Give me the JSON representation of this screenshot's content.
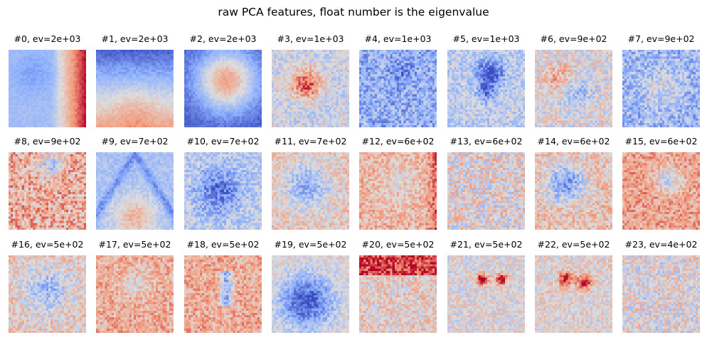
{
  "figure": {
    "title": "raw PCA features, float number is the eigenvalue"
  },
  "colors": {
    "colormap": "coolwarm",
    "low": "#3b4cc0",
    "mid": "#dddddd",
    "high": "#b40426"
  },
  "chart_data": {
    "type": "heatmap",
    "title": "raw PCA features, float number is the eigenvalue",
    "grid": false,
    "axes_visible": false,
    "colormap": "coolwarm",
    "panels": [
      {
        "label": "#0, ev=2e+03",
        "eigenvalue": 2000,
        "pattern": "left cool, right warm gradient"
      },
      {
        "label": "#1, ev=2e+03",
        "eigenvalue": 2000,
        "pattern": "top cool, bottom warm gradient"
      },
      {
        "label": "#2, ev=2e+03",
        "eigenvalue": 2000,
        "pattern": "warm center blob, cool edges"
      },
      {
        "label": "#3, ev=1e+03",
        "eigenvalue": 1000,
        "pattern": "strong warm object, cool ring"
      },
      {
        "label": "#4, ev=1e+03",
        "eigenvalue": 1000,
        "pattern": "cool noisy, faint object"
      },
      {
        "label": "#5, ev=1e+03",
        "eigenvalue": 1000,
        "pattern": "cool cross shape"
      },
      {
        "label": "#6, ev=9e+02",
        "eigenvalue": 900,
        "pattern": "mixed, warm arc"
      },
      {
        "label": "#7, ev=9e+02",
        "eigenvalue": 900,
        "pattern": "cool noisy"
      },
      {
        "label": "#8, ev=9e+02",
        "eigenvalue": 900,
        "pattern": "warm noisy, cool top"
      },
      {
        "label": "#9, ev=7e+02",
        "eigenvalue": 700,
        "pattern": "cool V shape, warm bottom"
      },
      {
        "label": "#10, ev=7e+02",
        "eigenvalue": 700,
        "pattern": "cool object"
      },
      {
        "label": "#11, ev=7e+02",
        "eigenvalue": 700,
        "pattern": "cool blob, warm edges"
      },
      {
        "label": "#12, ev=6e+02",
        "eigenvalue": 600,
        "pattern": "warm, red right edge"
      },
      {
        "label": "#13, ev=6e+02",
        "eigenvalue": 600,
        "pattern": "mixed noisy"
      },
      {
        "label": "#14, ev=6e+02",
        "eigenvalue": 600,
        "pattern": "cool center, warm edges"
      },
      {
        "label": "#15, ev=6e+02",
        "eigenvalue": 600,
        "pattern": "warm, cool center"
      },
      {
        "label": "#16, ev=5e+02",
        "eigenvalue": 500,
        "pattern": "cool center, warm edges"
      },
      {
        "label": "#17, ev=5e+02",
        "eigenvalue": 500,
        "pattern": "warm, faint center"
      },
      {
        "label": "#18, ev=5e+02",
        "eigenvalue": 500,
        "pattern": "warm, cool center stripe"
      },
      {
        "label": "#19, ev=5e+02",
        "eigenvalue": 500,
        "pattern": "strong cool object"
      },
      {
        "label": "#20, ev=5e+02",
        "eigenvalue": 500,
        "pattern": "warm top band"
      },
      {
        "label": "#21, ev=5e+02",
        "eigenvalue": 500,
        "pattern": "two red spots"
      },
      {
        "label": "#22, ev=5e+02",
        "eigenvalue": 500,
        "pattern": "two warm spots"
      },
      {
        "label": "#23, ev=4e+02",
        "eigenvalue": 400,
        "pattern": "mixed noisy"
      }
    ]
  }
}
